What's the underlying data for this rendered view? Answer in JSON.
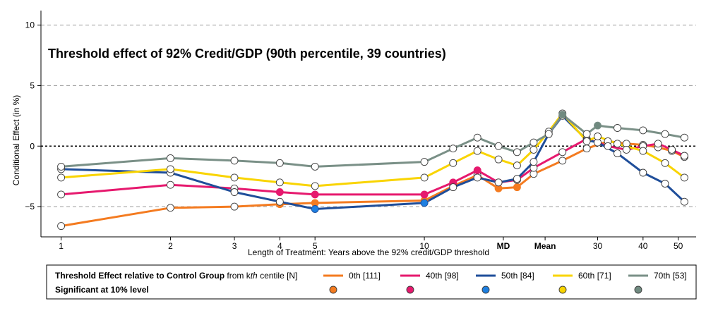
{
  "chart_data": {
    "type": "line",
    "title": "Threshold effect of 92% Credit/GDP (90th percentile, 39 countries)",
    "xlabel": "Length of Treatment: Years above the 92% credit/GDP threshold",
    "ylabel": "Conditional Effect (in %)",
    "xscale": "log",
    "xlim": [
      0.88,
      56
    ],
    "ylim": [
      -7.5,
      11.2
    ],
    "y_ticks": [
      -5,
      0,
      5,
      10
    ],
    "y_tick_labels": [
      "−5",
      "0",
      "5",
      "10"
    ],
    "x_ticks": [
      {
        "x": 1,
        "label": "1"
      },
      {
        "x": 2,
        "label": "2"
      },
      {
        "x": 3,
        "label": "3"
      },
      {
        "x": 4,
        "label": "4"
      },
      {
        "x": 5,
        "label": "5"
      },
      {
        "x": 10,
        "label": "10"
      },
      {
        "x": 30,
        "label": "30"
      },
      {
        "x": 40,
        "label": "40"
      },
      {
        "x": 50,
        "label": "50"
      }
    ],
    "x_special_ticks": [
      {
        "x": 16.5,
        "label": "MD"
      },
      {
        "x": 21.5,
        "label": "Mean"
      }
    ],
    "grid": "horizontal dashed at major y ticks",
    "zero_line": "dotted",
    "legend": {
      "position": "bottom",
      "row1_bold": "Threshold Effect relative to Control Group",
      "row1_from": "from k",
      "row1_th": "th",
      "row1_tail": "centile [N]",
      "row2_label": "Significant at 10% level"
    },
    "series": [
      {
        "name": "0th [111]",
        "color": "#F47B20",
        "sig_color": "#F47B20",
        "x": [
          1,
          2,
          3,
          4,
          5,
          10,
          12,
          14,
          16,
          18,
          20,
          24,
          28,
          32,
          36,
          40,
          44,
          48,
          52
        ],
        "y": [
          -6.6,
          -5.1,
          -5.0,
          -4.8,
          -4.7,
          -4.5,
          -3.3,
          -2.4,
          -3.5,
          -3.4,
          -2.3,
          -1.2,
          -0.2,
          0.4,
          0.2,
          0.1,
          -0.1,
          -0.4,
          -0.9
        ],
        "significant": [
          false,
          false,
          false,
          true,
          true,
          true,
          false,
          false,
          true,
          true,
          false,
          false,
          false,
          false,
          false,
          false,
          false,
          false,
          false
        ]
      },
      {
        "name": "40th [98]",
        "color": "#E6196E",
        "sig_color": "#E6196E",
        "x": [
          1,
          2,
          3,
          4,
          5,
          10,
          12,
          14,
          16,
          18,
          20,
          24,
          28,
          32,
          36,
          40,
          44,
          48,
          52
        ],
        "y": [
          -4.0,
          -3.2,
          -3.5,
          -3.8,
          -4.0,
          -4.0,
          -3.0,
          -2.0,
          -3.0,
          -2.8,
          -1.8,
          -0.5,
          0.6,
          0.0,
          -0.3,
          0.0,
          0.2,
          -0.3,
          -0.8
        ],
        "significant": [
          false,
          false,
          false,
          true,
          true,
          true,
          true,
          true,
          true,
          false,
          false,
          false,
          false,
          false,
          false,
          false,
          false,
          false,
          false
        ]
      },
      {
        "name": "50th [84]",
        "color": "#1F4E9A",
        "sig_color": "#1E7FE0",
        "x": [
          1,
          2,
          3,
          4,
          5,
          10,
          12,
          14,
          16,
          18,
          20,
          22,
          24,
          28,
          30,
          34,
          40,
          46,
          52
        ],
        "y": [
          -1.9,
          -2.2,
          -3.8,
          -4.6,
          -5.2,
          -4.7,
          -3.4,
          -2.6,
          -3.0,
          -2.7,
          -1.3,
          1.0,
          2.5,
          0.5,
          0.3,
          -0.6,
          -2.2,
          -3.1,
          -4.6
        ],
        "significant": [
          false,
          false,
          false,
          false,
          true,
          true,
          false,
          false,
          false,
          false,
          false,
          false,
          false,
          false,
          false,
          false,
          false,
          false,
          false
        ]
      },
      {
        "name": "60th [71]",
        "color": "#F9D400",
        "sig_color": "#F9D400",
        "x": [
          1,
          2,
          3,
          4,
          5,
          10,
          12,
          14,
          16,
          18,
          20,
          22,
          24,
          28,
          30,
          34,
          40,
          46,
          52
        ],
        "y": [
          -2.6,
          -1.9,
          -2.6,
          -3.0,
          -3.3,
          -2.6,
          -1.4,
          -0.4,
          -1.1,
          -1.6,
          -0.3,
          1.2,
          2.7,
          0.4,
          0.8,
          0.2,
          -0.4,
          -1.4,
          -2.6
        ],
        "significant": [
          false,
          false,
          false,
          false,
          false,
          false,
          false,
          false,
          false,
          false,
          false,
          false,
          false,
          false,
          false,
          false,
          false,
          false,
          false
        ]
      },
      {
        "name": "70th [53]",
        "color": "#7A9087",
        "sig_color": "#708A80",
        "x": [
          1,
          2,
          3,
          4,
          5,
          10,
          12,
          14,
          16,
          18,
          20,
          22,
          24,
          28,
          30,
          34,
          40,
          46,
          52
        ],
        "y": [
          -1.7,
          -1.0,
          -1.2,
          -1.4,
          -1.7,
          -1.3,
          -0.2,
          0.7,
          0.0,
          -0.5,
          0.3,
          1.0,
          2.6,
          1.0,
          1.7,
          1.5,
          1.3,
          1.0,
          0.7
        ],
        "significant": [
          false,
          false,
          false,
          false,
          false,
          false,
          false,
          false,
          false,
          false,
          false,
          false,
          true,
          false,
          true,
          false,
          false,
          false,
          false
        ]
      }
    ]
  }
}
